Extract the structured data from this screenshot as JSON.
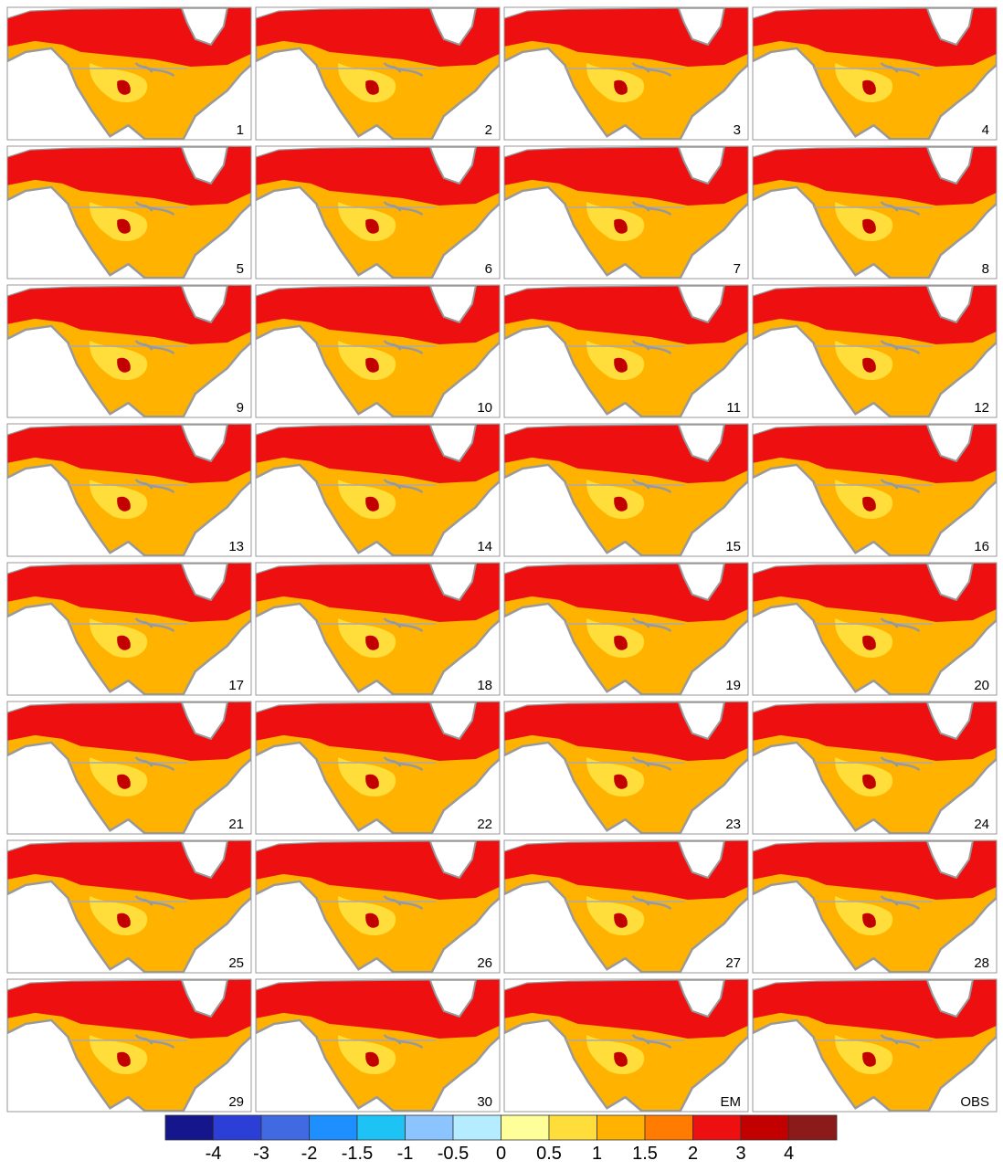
{
  "panels": [
    {
      "label": "1"
    },
    {
      "label": "2"
    },
    {
      "label": "3"
    },
    {
      "label": "4"
    },
    {
      "label": "5"
    },
    {
      "label": "6"
    },
    {
      "label": "7"
    },
    {
      "label": "8"
    },
    {
      "label": "9"
    },
    {
      "label": "10"
    },
    {
      "label": "11"
    },
    {
      "label": "12"
    },
    {
      "label": "13"
    },
    {
      "label": "14"
    },
    {
      "label": "15"
    },
    {
      "label": "16"
    },
    {
      "label": "17"
    },
    {
      "label": "18"
    },
    {
      "label": "19"
    },
    {
      "label": "20"
    },
    {
      "label": "21"
    },
    {
      "label": "22"
    },
    {
      "label": "23"
    },
    {
      "label": "24"
    },
    {
      "label": "25"
    },
    {
      "label": "26"
    },
    {
      "label": "27"
    },
    {
      "label": "28"
    },
    {
      "label": "29"
    },
    {
      "label": "30"
    },
    {
      "label": "EM"
    },
    {
      "label": "OBS"
    }
  ],
  "colorbar": {
    "colors": [
      "#16168c",
      "#2b3fd6",
      "#4169e1",
      "#1e8fff",
      "#1ec3f5",
      "#8cc4ff",
      "#b6ecff",
      "#ffff99",
      "#ffde3c",
      "#ffb300",
      "#ff7c00",
      "#ee1010",
      "#c20000",
      "#8b1a1a"
    ],
    "ticks": [
      -4,
      -3,
      -2,
      -1.5,
      -1,
      -0.5,
      0,
      0.5,
      1,
      1.5,
      2,
      3,
      4
    ]
  }
}
